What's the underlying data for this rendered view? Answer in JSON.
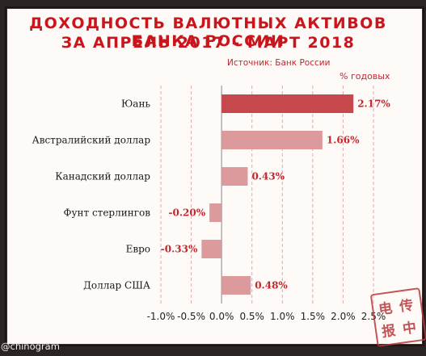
{
  "title_line1": "ДОХОДНОСТЬ ВАЛЮТНЫХ АКТИВОВ БАНКА РОССИИ",
  "title_line2": "ЗА АПРЕЛЬ 2017 – МАРТ 2018",
  "source": "Источник: Банк России",
  "credit": "@chinogram",
  "stamp_chars": [
    "电",
    "传",
    "报",
    "中"
  ],
  "colors": {
    "title": "#c8161c",
    "bar_primary": "#c6474c",
    "bar_secondary": "#dd9a9d",
    "label": "#c0282c"
  },
  "chart_data": {
    "type": "bar",
    "orientation": "horizontal",
    "unit_label": "% годовых",
    "categories": [
      "Юань",
      "Австралийский доллар",
      "Канадский доллар",
      "Фунт стерлингов",
      "Евро",
      "Доллар США"
    ],
    "values": [
      2.17,
      1.66,
      0.43,
      -0.2,
      -0.33,
      0.48
    ],
    "value_labels": [
      "2.17%",
      "1.66%",
      "0.43%",
      "-0.20%",
      "-0.33%",
      "0.48%"
    ],
    "xlim": [
      -1.0,
      2.5
    ],
    "ticks": [
      -1.0,
      -0.5,
      0.0,
      0.5,
      1.0,
      1.5,
      2.0,
      2.5
    ],
    "tick_labels": [
      "-1.0%",
      "-0.5%",
      "0.0%",
      "0.5%",
      "1.0%",
      "1.5%",
      "2.0%",
      "2.5%"
    ],
    "grid": "vertical dashed",
    "highlight_index": 0
  }
}
